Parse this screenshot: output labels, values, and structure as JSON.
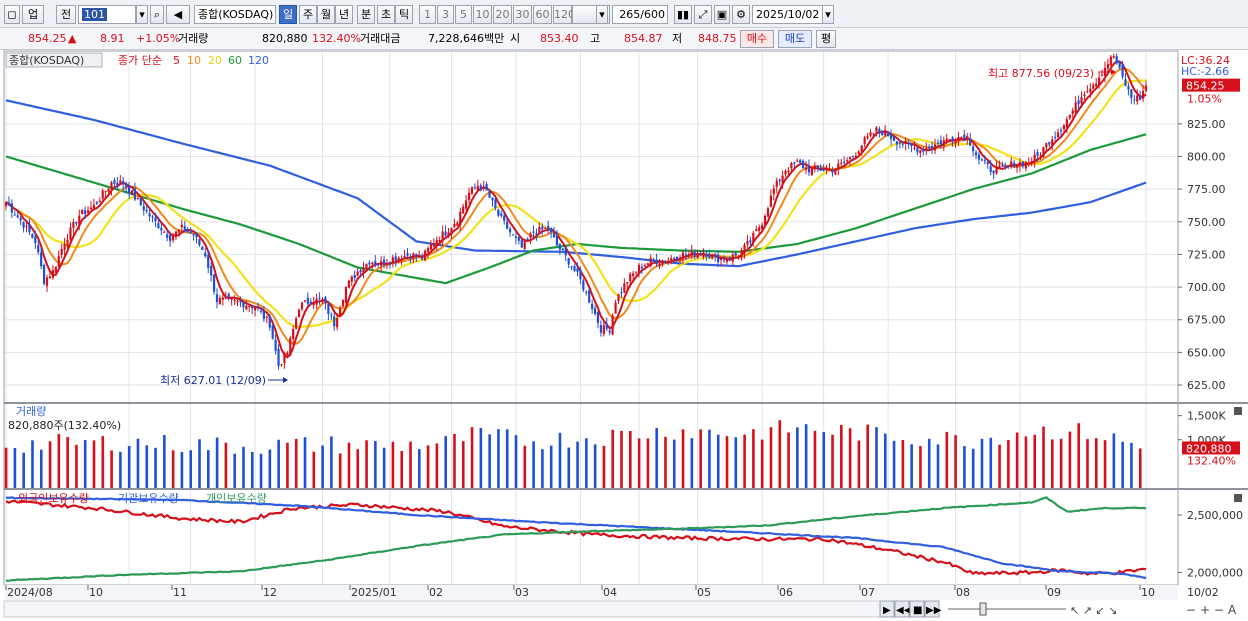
{
  "toolbar": {
    "market": "업",
    "prev_label": "전",
    "code": "101",
    "index_name": "종합(KOSDAQ)",
    "periods": [
      "일",
      "주",
      "월",
      "년",
      "분",
      "초",
      "틱"
    ],
    "active_period": "일",
    "intervals": [
      "1",
      "3",
      "5",
      "10",
      "20",
      "30",
      "60",
      "120"
    ],
    "count": "265",
    "count_max": "/600",
    "date": "2025/10/02"
  },
  "quote": {
    "price": "854.25",
    "change_sign": "▲",
    "change": "8.91",
    "change_pct": "+1.05%",
    "volume_label": "거래량",
    "volume": "820,880",
    "volume_pct": "132.40%",
    "amount_label": "거래대금",
    "amount": "7,228,646백만",
    "open_label": "시",
    "open": "853.40",
    "high_label": "고",
    "high": "854.87",
    "low_label": "저",
    "low": "848.75",
    "buy_label": "매수",
    "sell_label": "매도",
    "eval_label": "평"
  },
  "colors": {
    "up": "#d6101a",
    "down": "#1f4fd6",
    "ma5": "#d6101a",
    "ma10": "#f08a1c",
    "ma20": "#f2e21b",
    "ma60": "#1c9a3a",
    "ma120": "#2f5fe0",
    "foreign": "#d6101a",
    "institution": "#2f5fe0",
    "individual": "#2e9a5a"
  },
  "chart_data": [
    {
      "type": "candlestick",
      "title": "종합(KOSDAQ)",
      "legend_prefix": "종가 단순",
      "ma_periods": [
        "5",
        "10",
        "20",
        "60",
        "120"
      ],
      "ylim": [
        612,
        880
      ],
      "yticks": [
        "625.00",
        "650.00",
        "675.00",
        "700.00",
        "725.00",
        "750.00",
        "775.00",
        "800.00",
        "825.00"
      ],
      "last_price_label": "854.25",
      "last_pct_label": "1.05%",
      "lc_label": "LC:36.24",
      "hc_label": "HC:-2.66",
      "annotations": {
        "high": "최고 877.56 (09/23)",
        "low": "최저 627.01 (12/09)"
      },
      "close_anchors": [
        [
          0,
          765
        ],
        [
          6,
          748
        ],
        [
          10,
          735
        ],
        [
          13,
          705
        ],
        [
          16,
          712
        ],
        [
          20,
          735
        ],
        [
          25,
          755
        ],
        [
          30,
          762
        ],
        [
          36,
          780
        ],
        [
          40,
          780
        ],
        [
          46,
          763
        ],
        [
          50,
          752
        ],
        [
          56,
          738
        ],
        [
          60,
          745
        ],
        [
          64,
          740
        ],
        [
          68,
          725
        ],
        [
          72,
          690
        ],
        [
          75,
          690
        ],
        [
          80,
          688
        ],
        [
          85,
          685
        ],
        [
          90,
          672
        ],
        [
          93,
          640
        ],
        [
          96,
          650
        ],
        [
          100,
          685
        ],
        [
          104,
          690
        ],
        [
          108,
          690
        ],
        [
          112,
          672
        ],
        [
          116,
          700
        ],
        [
          120,
          712
        ],
        [
          124,
          720
        ],
        [
          128,
          718
        ],
        [
          132,
          722
        ],
        [
          138,
          725
        ],
        [
          142,
          722
        ],
        [
          146,
          735
        ],
        [
          150,
          742
        ],
        [
          154,
          752
        ],
        [
          158,
          772
        ],
        [
          161,
          778
        ],
        [
          164,
          773
        ],
        [
          168,
          755
        ],
        [
          172,
          742
        ],
        [
          176,
          730
        ],
        [
          180,
          742
        ],
        [
          185,
          745
        ],
        [
          188,
          732
        ],
        [
          192,
          720
        ],
        [
          196,
          705
        ],
        [
          200,
          685
        ],
        [
          203,
          668
        ],
        [
          206,
          668
        ],
        [
          208,
          690
        ],
        [
          212,
          705
        ],
        [
          216,
          715
        ],
        [
          220,
          720
        ],
        [
          225,
          720
        ],
        [
          230,
          725
        ],
        [
          234,
          725
        ],
        [
          238,
          727
        ],
        [
          242,
          722
        ],
        [
          246,
          722
        ],
        [
          250,
          725
        ],
        [
          254,
          735
        ],
        [
          258,
          750
        ],
        [
          262,
          775
        ],
        [
          266,
          790
        ],
        [
          270,
          795
        ],
        [
          274,
          790
        ],
        [
          278,
          790
        ],
        [
          282,
          790
        ],
        [
          286,
          795
        ],
        [
          290,
          803
        ],
        [
          293,
          812
        ],
        [
          297,
          820
        ],
        [
          300,
          818
        ],
        [
          304,
          812
        ],
        [
          308,
          808
        ],
        [
          312,
          805
        ],
        [
          316,
          808
        ],
        [
          320,
          812
        ],
        [
          324,
          815
        ],
        [
          328,
          815
        ],
        [
          332,
          798
        ],
        [
          336,
          790
        ],
        [
          340,
          790
        ],
        [
          344,
          795
        ],
        [
          348,
          795
        ],
        [
          352,
          800
        ],
        [
          356,
          812
        ],
        [
          360,
          822
        ],
        [
          364,
          835
        ],
        [
          368,
          850
        ],
        [
          372,
          858
        ],
        [
          376,
          872
        ],
        [
          378,
          877
        ],
        [
          381,
          860
        ],
        [
          384,
          845
        ],
        [
          387,
          845
        ],
        [
          389,
          854
        ]
      ],
      "ma_anchors": {
        "ma60": [
          [
            0,
            800
          ],
          [
            30,
            780
          ],
          [
            60,
            760
          ],
          [
            80,
            748
          ],
          [
            100,
            733
          ],
          [
            120,
            715
          ],
          [
            140,
            707
          ],
          [
            150,
            703
          ],
          [
            165,
            715
          ],
          [
            180,
            728
          ],
          [
            195,
            733
          ],
          [
            210,
            730
          ],
          [
            230,
            728
          ],
          [
            250,
            727
          ],
          [
            270,
            733
          ],
          [
            290,
            745
          ],
          [
            310,
            760
          ],
          [
            330,
            775
          ],
          [
            350,
            787
          ],
          [
            370,
            805
          ],
          [
            389,
            817
          ]
        ],
        "ma120": [
          [
            0,
            843
          ],
          [
            30,
            828
          ],
          [
            60,
            810
          ],
          [
            90,
            793
          ],
          [
            120,
            768
          ],
          [
            140,
            735
          ],
          [
            160,
            728
          ],
          [
            190,
            727
          ],
          [
            210,
            723
          ],
          [
            230,
            718
          ],
          [
            250,
            716
          ],
          [
            270,
            725
          ],
          [
            290,
            735
          ],
          [
            310,
            745
          ],
          [
            330,
            752
          ],
          [
            350,
            757
          ],
          [
            370,
            765
          ],
          [
            389,
            780
          ]
        ]
      }
    },
    {
      "type": "bar",
      "title": "거래량",
      "subtitle": "820,880주(132.40%)",
      "yticks": [
        "1,500K",
        "1,000K"
      ],
      "last_value_label": "820,880",
      "last_pct_label": "132.40%",
      "ylim": [
        0,
        1700
      ],
      "volume_anchors": [
        [
          0,
          900
        ],
        [
          40,
          950
        ],
        [
          80,
          870
        ],
        [
          110,
          900
        ],
        [
          130,
          880
        ],
        [
          150,
          930
        ],
        [
          160,
          1100
        ],
        [
          180,
          980
        ],
        [
          200,
          1050
        ],
        [
          220,
          1150
        ],
        [
          230,
          1200
        ],
        [
          250,
          1120
        ],
        [
          270,
          1250
        ],
        [
          290,
          1150
        ],
        [
          310,
          1050
        ],
        [
          330,
          1000
        ],
        [
          350,
          1200
        ],
        [
          370,
          1150
        ],
        [
          389,
          820
        ]
      ]
    },
    {
      "type": "line",
      "series_labels": [
        "외국인보유수량",
        "기관보유수량",
        "개인보유수량"
      ],
      "yticks": [
        "2,500,000",
        "2,000,000"
      ],
      "ylim": [
        1900000,
        2700000
      ],
      "series": [
        {
          "name": "외국인보유수량",
          "values": [
            [
              0,
              2620000
            ],
            [
              30,
              2560000
            ],
            [
              60,
              2470000
            ],
            [
              80,
              2440000
            ],
            [
              98,
              2560000
            ],
            [
              120,
              2590000
            ],
            [
              150,
              2530000
            ],
            [
              170,
              2400000
            ],
            [
              200,
              2330000
            ],
            [
              230,
              2300000
            ],
            [
              260,
              2290000
            ],
            [
              280,
              2290000
            ],
            [
              300,
              2200000
            ],
            [
              320,
              2090000
            ],
            [
              330,
              1990000
            ],
            [
              350,
              2000000
            ],
            [
              360,
              2020000
            ],
            [
              370,
              1990000
            ],
            [
              380,
              2000000
            ],
            [
              389,
              2030000
            ]
          ]
        },
        {
          "name": "기관보유수량",
          "values": [
            [
              0,
              2650000
            ],
            [
              60,
              2630000
            ],
            [
              100,
              2580000
            ],
            [
              140,
              2500000
            ],
            [
              180,
              2440000
            ],
            [
              220,
              2390000
            ],
            [
              260,
              2340000
            ],
            [
              290,
              2300000
            ],
            [
              320,
              2220000
            ],
            [
              340,
              2080000
            ],
            [
              360,
              2010000
            ],
            [
              380,
              1990000
            ],
            [
              389,
              1955000
            ]
          ]
        },
        {
          "name": "개인보유수량",
          "values": [
            [
              0,
              1930000
            ],
            [
              40,
              1980000
            ],
            [
              80,
              2010000
            ],
            [
              110,
              2110000
            ],
            [
              140,
              2230000
            ],
            [
              170,
              2330000
            ],
            [
              200,
              2360000
            ],
            [
              230,
              2380000
            ],
            [
              260,
              2410000
            ],
            [
              290,
              2490000
            ],
            [
              320,
              2560000
            ],
            [
              350,
              2610000
            ],
            [
              355,
              2650000
            ],
            [
              362,
              2530000
            ],
            [
              375,
              2560000
            ],
            [
              389,
              2560000
            ]
          ]
        }
      ]
    }
  ],
  "x_axis": {
    "labels": [
      "2024/08",
      "10",
      "11",
      "12",
      "2025/01",
      "02",
      "03",
      "04",
      "05",
      "06",
      "07",
      "08",
      "09",
      "10",
      "10/02"
    ]
  }
}
